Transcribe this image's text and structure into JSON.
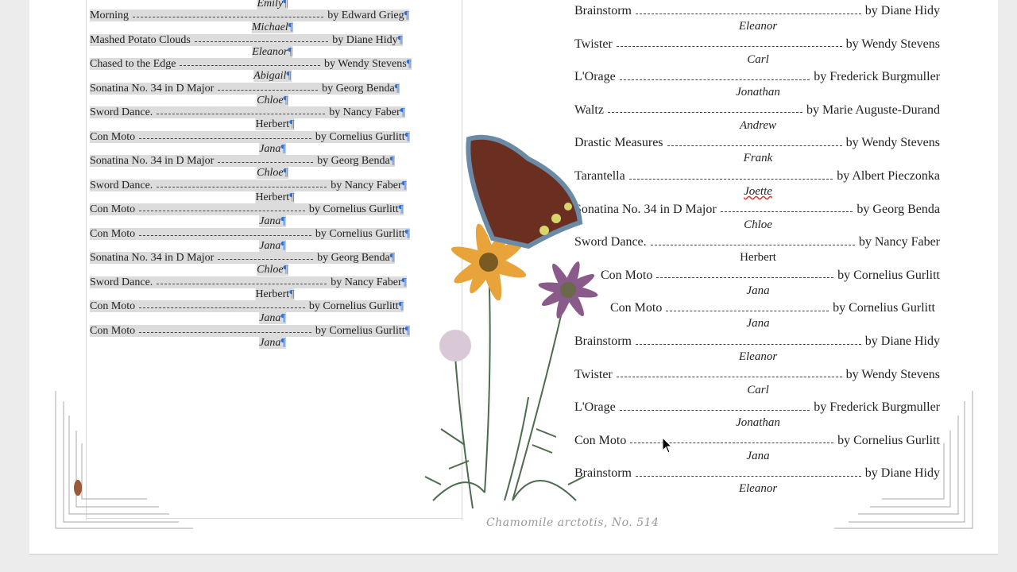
{
  "left_column": {
    "first_performer": "Emily",
    "entries": [
      {
        "title": "Morning",
        "composer": "by Edward Grieg",
        "performer": "Michael"
      },
      {
        "title": "Mashed Potato Clouds",
        "composer": "by Diane Hidy",
        "performer": "Eleanor"
      },
      {
        "title": "Chased to the Edge",
        "composer": "by Wendy Stevens",
        "performer": "Abigail"
      },
      {
        "title": "Sonatina No. 34 in D Major",
        "composer": "by Georg Benda",
        "performer": "Chloe"
      },
      {
        "title": "Sword Dance.",
        "composer": "by Nancy Faber",
        "performer": "Herbert"
      },
      {
        "title": "Con Moto",
        "composer": "by Cornelius Gurlitt",
        "performer": "Jana"
      },
      {
        "title": "Sonatina No. 34 in D Major",
        "composer": "by Georg Benda",
        "performer": "Chloe"
      },
      {
        "title": "Sword Dance.",
        "composer": "by Nancy Faber",
        "performer": "Herbert"
      },
      {
        "title": "Con Moto",
        "composer": "by Cornelius Gurlitt",
        "performer": "Jana"
      },
      {
        "title": "Con Moto",
        "composer": "by Cornelius Gurlitt",
        "performer": "Jana"
      },
      {
        "title": "Sonatina No. 34 in D Major",
        "composer": "by Georg Benda",
        "performer": "Chloe"
      },
      {
        "title": "Sword Dance.",
        "composer": "by Nancy Faber",
        "performer": "Herbert"
      },
      {
        "title": "Con Moto",
        "composer": "by Cornelius Gurlitt",
        "performer": "Jana"
      },
      {
        "title": "Con Moto",
        "composer": "by Cornelius Gurlitt",
        "performer": "Jana"
      }
    ],
    "pilcrow": "¶"
  },
  "right_column": {
    "entries": [
      {
        "title": "Brainstorm",
        "composer": "by Diane Hidy",
        "performer": "Eleanor"
      },
      {
        "title": "Twister",
        "composer": "by Wendy Stevens",
        "performer": "Carl"
      },
      {
        "title": "L'Orage",
        "composer": "by Frederick Burgmuller",
        "performer": "Jonathan"
      },
      {
        "title": "Waltz",
        "composer": "by Marie Auguste-Durand",
        "performer": "Andrew"
      },
      {
        "title": "Drastic Measures",
        "composer": "by Wendy Stevens",
        "performer": "Frank"
      },
      {
        "title": "Tarantella",
        "composer": "by Albert Pieczonka",
        "performer": "Joette"
      },
      {
        "title": "Sonatina No. 34 in D Major",
        "composer": "by Georg Benda",
        "performer": "Chloe"
      },
      {
        "title": "Sword Dance.",
        "composer": "by Nancy Faber",
        "performer": "Herbert"
      },
      {
        "title": "Con Moto",
        "composer": "by Cornelius Gurlitt",
        "performer": "Jana"
      },
      {
        "title": "Con Moto",
        "composer": "by Cornelius Gurlitt",
        "performer": "Jana"
      },
      {
        "title": "Brainstorm",
        "composer": "by Diane Hidy",
        "performer": "Eleanor"
      },
      {
        "title": "Twister",
        "composer": "by Wendy Stevens",
        "performer": "Carl"
      },
      {
        "title": "L'Orage",
        "composer": "by Frederick Burgmuller",
        "performer": "Jonathan"
      },
      {
        "title": "Con Moto",
        "composer": "by Cornelius Gurlitt",
        "performer": "Jana"
      },
      {
        "title": "Brainstorm",
        "composer": "by Diane Hidy",
        "performer": "Eleanor"
      }
    ]
  },
  "illustration": {
    "caption": "Chamomile arctotis, No. 514",
    "icons": [
      "butterfly-illustration",
      "flower-illustration",
      "beetle-illustration"
    ]
  },
  "colors": {
    "highlight": "#dcdcdc",
    "pilcrow": "#2f6fd6",
    "spellcheck": "#dd3333"
  }
}
